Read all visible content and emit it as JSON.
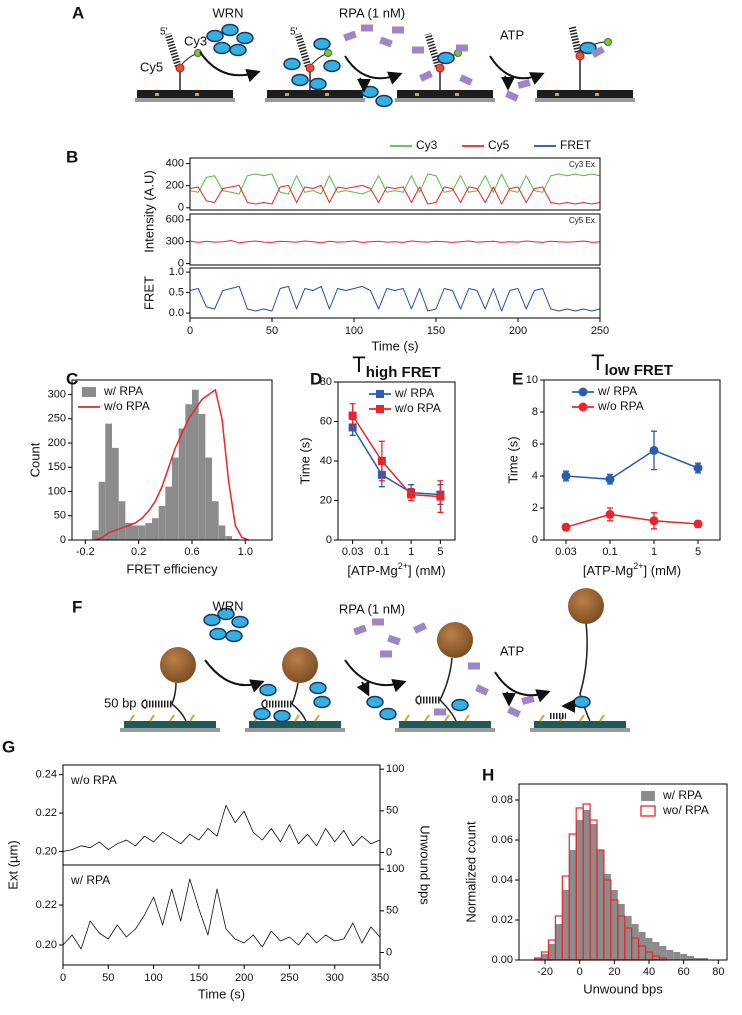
{
  "panel_labels": [
    "A",
    "B",
    "C",
    "D",
    "E",
    "F",
    "G",
    "H"
  ],
  "diagram_a": {
    "enzyme": "WRN",
    "rpa": "RPA (1 nM)",
    "atp": "ATP",
    "cy3": "Cy3",
    "cy5": "Cy5",
    "five_prime": "5'"
  },
  "diagram_f": {
    "enzyme": "WRN",
    "rpa": "RPA (1 nM)",
    "atp": "ATP",
    "hairpin": "50 bp"
  },
  "chart_data": [
    {
      "type": "line",
      "x": [
        0,
        5,
        10,
        15,
        20,
        25,
        30,
        35,
        40,
        45,
        50,
        55,
        60,
        65,
        70,
        75,
        80,
        85,
        90,
        95,
        100,
        105,
        110,
        115,
        120,
        125,
        130,
        135,
        140,
        145,
        150,
        155,
        160,
        165,
        170,
        175,
        180,
        185,
        190,
        195,
        200,
        205,
        210,
        215,
        220,
        225,
        230,
        235,
        240,
        245,
        250
      ],
      "xlim": [
        0,
        250
      ],
      "xticks": [
        0,
        50,
        100,
        150,
        200,
        250
      ],
      "xlabel": "Time (s)",
      "ylabel": "Intensity (A.U)",
      "legend": "above right",
      "subplots": [
        {
          "annotation": "Cy3 Ex.",
          "ylim": [
            -20,
            450
          ],
          "yticks": [
            0,
            200,
            400
          ],
          "series": [
            {
              "name": "Cy3",
              "color": "#5cb947",
              "values": [
                155,
                140,
                275,
                290,
                155,
                140,
                125,
                290,
                305,
                290,
                305,
                140,
                125,
                290,
                140,
                155,
                125,
                290,
                140,
                155,
                140,
                125,
                155,
                290,
                140,
                155,
                140,
                290,
                140,
                305,
                290,
                140,
                155,
                290,
                140,
                155,
                290,
                140,
                305,
                155,
                140,
                290,
                155,
                140,
                290,
                305,
                290,
                305,
                290,
                305,
                290
              ]
            },
            {
              "name": "Cy5",
              "color": "#e8262a",
              "values": [
                174,
                188,
                62,
                48,
                174,
                188,
                202,
                48,
                34,
                48,
                34,
                188,
                202,
                48,
                188,
                174,
                202,
                48,
                188,
                174,
                188,
                202,
                174,
                48,
                188,
                174,
                188,
                48,
                188,
                34,
                48,
                188,
                174,
                48,
                188,
                174,
                48,
                188,
                34,
                174,
                188,
                48,
                174,
                188,
                48,
                34,
                48,
                34,
                48,
                34,
                48
              ]
            }
          ]
        },
        {
          "annotation": "Cy5 Ex.",
          "ylim": [
            -20,
            680
          ],
          "yticks": [
            0,
            300,
            600
          ],
          "series": [
            {
              "color": "#e8262a",
              "values": [
                310,
                290,
                305,
                295,
                300,
                315,
                285,
                300,
                310,
                295,
                290,
                305,
                300,
                295,
                310,
                300,
                285,
                305,
                295,
                300,
                310,
                290,
                300,
                305,
                295,
                300,
                290,
                310,
                300,
                295,
                305,
                300,
                290,
                300,
                310,
                295,
                300,
                305,
                290,
                300,
                295,
                310,
                300,
                290,
                305,
                300,
                295,
                300,
                310,
                290,
                300
              ]
            }
          ]
        },
        {
          "ylabel": "FRET",
          "ylim": [
            -0.12,
            1.1
          ],
          "yticks": [
            {
              "value": 0,
              "label": "0.0"
            },
            0.5,
            {
              "value": 1,
              "label": "1.0"
            }
          ],
          "series": [
            {
              "name": "FRET",
              "color": "#1f4fa8",
              "values": [
                0.55,
                0.6,
                0.15,
                0.1,
                0.55,
                0.6,
                0.65,
                0.1,
                0.05,
                0.1,
                0.05,
                0.6,
                0.65,
                0.1,
                0.6,
                0.55,
                0.65,
                0.1,
                0.6,
                0.55,
                0.6,
                0.65,
                0.55,
                0.1,
                0.6,
                0.55,
                0.6,
                0.1,
                0.6,
                0.05,
                0.1,
                0.6,
                0.55,
                0.1,
                0.6,
                0.55,
                0.1,
                0.6,
                0.05,
                0.55,
                0.6,
                0.1,
                0.55,
                0.6,
                0.1,
                0.05,
                0.1,
                0.05,
                0.1,
                0.05,
                0.1
              ]
            }
          ]
        }
      ]
    },
    {
      "type": "histogram",
      "bins": [
        -0.15,
        -0.1,
        -0.05,
        0,
        0.05,
        0.1,
        0.15,
        0.2,
        0.25,
        0.3,
        0.35,
        0.4,
        0.45,
        0.5,
        0.55,
        0.6,
        0.65,
        0.7,
        0.75,
        0.8,
        0.85,
        0.9,
        0.95,
        1,
        1.05
      ],
      "xlim": [
        -0.3,
        1.2
      ],
      "xticks": [
        -0.2,
        0.2,
        0.6,
        {
          "value": 1,
          "label": "1.0"
        }
      ],
      "ylim": [
        0,
        330
      ],
      "yticks": [
        0,
        50,
        100,
        150,
        200,
        250,
        300
      ],
      "xlabel": "FRET efficiency",
      "ylabel": "Count",
      "legend": "upper left",
      "series": [
        {
          "name": "w/ RPA",
          "color": "#8c8c8c",
          "style": "bar",
          "values": [
            20,
            120,
            240,
            190,
            80,
            35,
            30,
            30,
            35,
            45,
            70,
            110,
            170,
            230,
            280,
            310,
            260,
            170,
            80,
            30,
            8,
            2,
            0,
            0
          ]
        },
        {
          "name": "w/o RPA",
          "color": "#e8262a",
          "style": "line",
          "x": [
            -0.125,
            -0.075,
            -0.025,
            0.025,
            0.075,
            0.125,
            0.175,
            0.225,
            0.275,
            0.325,
            0.375,
            0.425,
            0.475,
            0.525,
            0.575,
            0.625,
            0.675,
            0.725,
            0.775,
            0.825,
            0.875,
            0.925,
            0.975,
            1.025
          ],
          "values": [
            0,
            5,
            15,
            20,
            25,
            30,
            35,
            45,
            60,
            80,
            110,
            150,
            190,
            220,
            250,
            270,
            290,
            300,
            310,
            250,
            120,
            30,
            5,
            0
          ]
        }
      ]
    },
    {
      "type": "line",
      "title": {
        "text": "T",
        "sub": "high FRET"
      },
      "categories": [
        "0.03",
        "0.1",
        "1",
        "5"
      ],
      "ylim": [
        0,
        80
      ],
      "yticks": [
        0,
        20,
        40,
        60,
        80
      ],
      "xlabel": {
        "text": "[ATP-Mg",
        "sup": "2+",
        "after": "] (mM)"
      },
      "ylabel": "Time (s)",
      "legend": "upper right",
      "series": [
        {
          "name": "w/ RPA",
          "color": "#2a5db0",
          "marker": "square",
          "values": [
            57,
            33,
            24,
            23
          ],
          "errors": [
            4,
            6,
            4,
            5
          ]
        },
        {
          "name": "w/o RPA",
          "color": "#e8262a",
          "marker": "square",
          "values": [
            63,
            40,
            23,
            22
          ],
          "errors": [
            6,
            10,
            3,
            8
          ]
        }
      ]
    },
    {
      "type": "line",
      "title": {
        "text": "T",
        "sub": "low FRET"
      },
      "categories": [
        "0.03",
        "0.1",
        "1",
        "5"
      ],
      "ylim": [
        0,
        10
      ],
      "yticks": [
        0,
        2,
        4,
        6,
        8,
        10
      ],
      "xlabel": {
        "text": "[ATP-Mg",
        "sup": "2+",
        "after": "] (mM)"
      },
      "ylabel": "Time (s)",
      "legend": "upper right",
      "series": [
        {
          "name": "w/ RPA",
          "color": "#2a5db0",
          "marker": "circle",
          "values": [
            4.0,
            3.8,
            5.6,
            4.5
          ],
          "errors": [
            0.3,
            0.3,
            1.2,
            0.3
          ]
        },
        {
          "name": "w/o RPA",
          "color": "#e8262a",
          "marker": "circle",
          "values": [
            0.8,
            1.6,
            1.2,
            1.0
          ],
          "errors": [
            0.2,
            0.4,
            0.5,
            0.2
          ]
        }
      ]
    },
    {
      "type": "line",
      "x": [
        0,
        10,
        20,
        30,
        40,
        50,
        60,
        70,
        80,
        90,
        100,
        110,
        120,
        130,
        140,
        150,
        160,
        170,
        180,
        190,
        200,
        210,
        220,
        230,
        240,
        250,
        260,
        270,
        280,
        290,
        300,
        310,
        320,
        330,
        340,
        350
      ],
      "xlim": [
        0,
        350
      ],
      "xticks": [
        0,
        50,
        100,
        150,
        200,
        250,
        300,
        350
      ],
      "xlabel": "Time (s)",
      "ylabel": "Ext (µm)",
      "y2label": "Unwound bps",
      "subplots": [
        {
          "annotation": "w/o RPA",
          "ylim": [
            0.193,
            0.245
          ],
          "yticks": [
            {
              "value": 0.2,
              "label": "0.20"
            },
            0.22,
            0.24
          ],
          "y2lim": [
            -15,
            105
          ],
          "y2ticks": [
            0,
            50,
            100
          ],
          "series": [
            {
              "color": "#111111",
              "values": [
                0.2,
                0.201,
                0.203,
                0.202,
                0.205,
                0.201,
                0.204,
                0.206,
                0.203,
                0.208,
                0.205,
                0.21,
                0.207,
                0.204,
                0.209,
                0.206,
                0.212,
                0.208,
                0.224,
                0.215,
                0.221,
                0.21,
                0.206,
                0.212,
                0.205,
                0.214,
                0.204,
                0.209,
                0.203,
                0.212,
                0.205,
                0.211,
                0.203,
                0.208,
                0.204,
                0.206
              ]
            }
          ]
        },
        {
          "annotation": "w/ RPA",
          "ylim": [
            0.19,
            0.24
          ],
          "yticks": [
            {
              "value": 0.2,
              "label": "0.20"
            },
            0.22
          ],
          "y2lim": [
            -15,
            105
          ],
          "y2ticks": [
            0,
            50,
            100
          ],
          "series": [
            {
              "color": "#111111",
              "values": [
                0.2,
                0.205,
                0.198,
                0.212,
                0.206,
                0.203,
                0.21,
                0.204,
                0.208,
                0.215,
                0.224,
                0.21,
                0.228,
                0.212,
                0.233,
                0.218,
                0.205,
                0.228,
                0.208,
                0.203,
                0.201,
                0.205,
                0.199,
                0.207,
                0.202,
                0.204,
                0.2,
                0.206,
                0.201,
                0.205,
                0.202,
                0.203,
                0.211,
                0.201,
                0.209,
                0.204
              ]
            }
          ]
        }
      ]
    },
    {
      "type": "histogram",
      "bins": [
        -30,
        -26,
        -22,
        -18,
        -14,
        -10,
        -6,
        -2,
        2,
        6,
        10,
        14,
        18,
        22,
        26,
        30,
        34,
        38,
        42,
        46,
        50,
        54,
        58,
        62,
        66,
        70,
        74,
        78
      ],
      "xlim": [
        -35,
        85
      ],
      "xticks": [
        -20,
        0,
        20,
        40,
        60,
        80
      ],
      "ylim": [
        0,
        0.088
      ],
      "yticks": [
        {
          "value": 0,
          "label": "0.00"
        },
        0.02,
        0.04,
        0.06,
        0.08
      ],
      "xlabel": "Unwound bps",
      "ylabel": "Normalized count",
      "legend": "upper right",
      "series": [
        {
          "name": "w/ RPA",
          "color": "#8c8c8c",
          "style": "bar",
          "values": [
            0.0,
            0.001,
            0.003,
            0.008,
            0.018,
            0.035,
            0.055,
            0.07,
            0.075,
            0.068,
            0.055,
            0.043,
            0.035,
            0.028,
            0.022,
            0.018,
            0.014,
            0.011,
            0.009,
            0.007,
            0.005,
            0.004,
            0.003,
            0.002,
            0.001,
            0.001,
            0.0
          ]
        },
        {
          "name": "wo/ RPA",
          "color": "#e8262a",
          "style": "outline",
          "values": [
            0.0,
            0.001,
            0.004,
            0.01,
            0.022,
            0.042,
            0.063,
            0.076,
            0.078,
            0.07,
            0.055,
            0.04,
            0.03,
            0.022,
            0.016,
            0.011,
            0.007,
            0.004,
            0.002,
            0.001,
            0.0,
            0.0,
            0.0,
            0.0,
            0.0,
            0.0,
            0.0
          ]
        }
      ]
    }
  ]
}
